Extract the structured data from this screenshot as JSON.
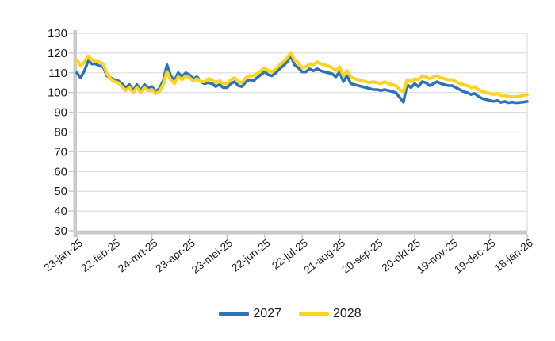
{
  "chart_data": {
    "type": "line",
    "title": "",
    "grid": true,
    "legend": {
      "position": "bottom",
      "entries": [
        "2027",
        "2028"
      ]
    },
    "y_axis": {
      "min": 30,
      "max": 130,
      "tick_step": 10,
      "tick_labels": [
        "130",
        "120",
        "110",
        "100",
        "90",
        "80",
        "70",
        "60",
        "50",
        "40",
        "30"
      ]
    },
    "x_axis": {
      "tick_labels": [
        "23-jan-25",
        "22-feb-25",
        "24-mrt-25",
        "23-apr-25",
        "23-mei-25",
        "22-jun-25",
        "22-jul-25",
        "21-aug-25",
        "20-sep-25",
        "20-okt-25",
        "19-nov-25",
        "19-dec-25",
        "18-jan-26"
      ],
      "tick_interval_days": 30,
      "start": "23-jan-25",
      "end": "18-jan-26"
    },
    "sample_step_days": 3,
    "series": [
      {
        "name": "2027",
        "color": "#2E74B5",
        "values": [
          110,
          107.5,
          111,
          116,
          114.5,
          114.5,
          113.5,
          113,
          108.5,
          107.5,
          106.5,
          106,
          104.5,
          102.5,
          104,
          101,
          104,
          101,
          104,
          102.5,
          103,
          100.5,
          102,
          106,
          114,
          108.5,
          106,
          110,
          108,
          110,
          109,
          107,
          108,
          105.5,
          104.5,
          105,
          104.5,
          103,
          104,
          102.5,
          102.5,
          104.5,
          105.5,
          103.5,
          103,
          105.5,
          106.5,
          106,
          107.5,
          109,
          110.5,
          109,
          108.5,
          110,
          112,
          113.5,
          115.5,
          118.5,
          114,
          112.5,
          110.5,
          110.5,
          112,
          111,
          112,
          111,
          110.5,
          110,
          109.5,
          108,
          110.5,
          105.5,
          108.5,
          104.5,
          104,
          103.5,
          103,
          102.5,
          102,
          101.5,
          101.5,
          101,
          101.5,
          101,
          100.5,
          100,
          97.5,
          95.2,
          104,
          102.5,
          104.5,
          103,
          105.5,
          105,
          103.5,
          104.5,
          105.5,
          104.5,
          104,
          103.5,
          103.5,
          102.5,
          101.5,
          100.5,
          100,
          99,
          99.5,
          98,
          97,
          96.5,
          96,
          95.5,
          96,
          95,
          95.5,
          94.8,
          95.2,
          94.8,
          95,
          95.2,
          95.5
        ]
      },
      {
        "name": "2028",
        "color": "#FFD320",
        "values": [
          116.5,
          113.5,
          115.5,
          118.5,
          116.5,
          116,
          115.5,
          114.5,
          109.5,
          107,
          105.5,
          105,
          103,
          101,
          102.5,
          100,
          102.5,
          100,
          102.5,
          101,
          101.5,
          99.5,
          100.5,
          104,
          110.5,
          106.5,
          104.5,
          108,
          106.5,
          108.5,
          107.5,
          106,
          107,
          105.5,
          105.5,
          107,
          106.5,
          105,
          106,
          104.5,
          104.5,
          106.5,
          107.5,
          105.5,
          105,
          107.5,
          108.5,
          108.5,
          109.5,
          111,
          112.5,
          111,
          110.5,
          112,
          114,
          115.5,
          117.5,
          120.3,
          116.5,
          115,
          112.5,
          113,
          114.5,
          114,
          115.5,
          114.5,
          114,
          113.5,
          112.5,
          111,
          113,
          108.5,
          111,
          108,
          107,
          106.5,
          106,
          105.5,
          105,
          105.5,
          105,
          104.5,
          105.5,
          104.5,
          104,
          103.5,
          101.5,
          100.3,
          106.5,
          105.5,
          107,
          106.5,
          108.5,
          108,
          107,
          108,
          108.5,
          107.5,
          107,
          106.5,
          106.5,
          105.5,
          104.5,
          104,
          103.5,
          102.5,
          103,
          101.5,
          100.5,
          100,
          99.5,
          99,
          99.5,
          98.5,
          98.5,
          98,
          98,
          97.8,
          98.2,
          98.6,
          99
        ]
      }
    ]
  },
  "colors": {
    "background": "#ffffff",
    "gridline": "#dcdcdc",
    "axis": "#c9c9c9",
    "text": "#1a1a1a"
  }
}
